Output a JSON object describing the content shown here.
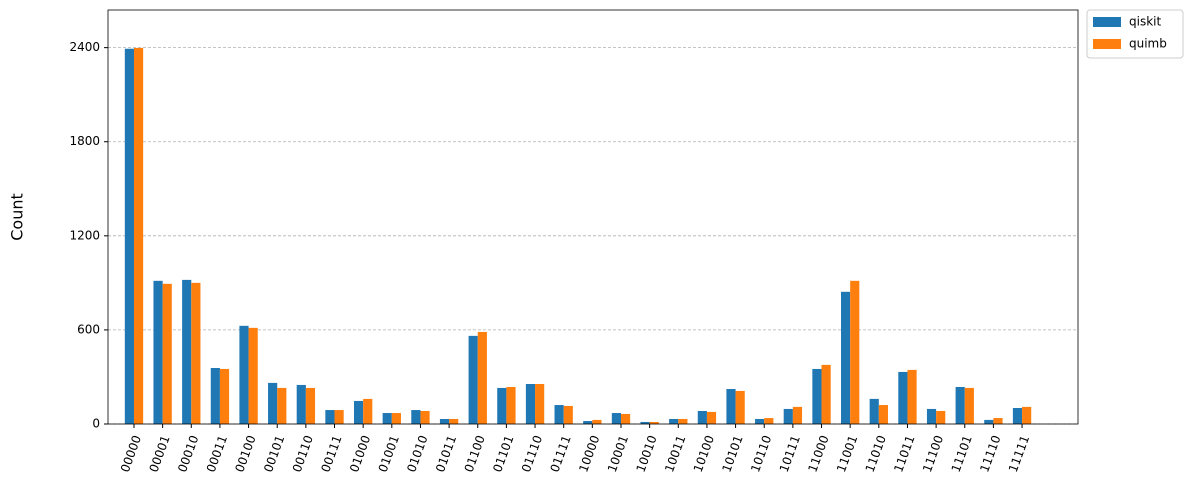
{
  "chart_data": {
    "type": "bar",
    "y_label": "Count",
    "categories": [
      "00000",
      "00001",
      "00010",
      "00011",
      "00100",
      "00101",
      "00110",
      "00111",
      "01000",
      "01001",
      "01010",
      "01011",
      "01100",
      "01101",
      "01110",
      "01111",
      "10000",
      "10001",
      "10010",
      "10011",
      "10100",
      "10101",
      "10110",
      "10111",
      "11000",
      "11001",
      "11010",
      "11011",
      "11100",
      "11101",
      "11110",
      "11111"
    ],
    "series": [
      {
        "name": "qiskit",
        "color": "#1f77b4",
        "values": [
          2393,
          913,
          919,
          357,
          626,
          262,
          249,
          89,
          147,
          70,
          89,
          32,
          562,
          230,
          255,
          121,
          19,
          70,
          13,
          32,
          83,
          223,
          32,
          96,
          351,
          843,
          160,
          332,
          96,
          236,
          26,
          102
        ]
      },
      {
        "name": "quimb",
        "color": "#ff7f0e",
        "values": [
          2398,
          894,
          900,
          351,
          613,
          230,
          230,
          89,
          160,
          70,
          83,
          32,
          587,
          236,
          255,
          115,
          26,
          64,
          13,
          32,
          77,
          211,
          38,
          109,
          377,
          913,
          121,
          345,
          83,
          230,
          38,
          109
        ]
      }
    ],
    "ylim": [
      0,
      2640
    ],
    "yticks": [
      0,
      600,
      1200,
      1800,
      2400
    ],
    "grid": true,
    "legend": "outside-upper-right"
  }
}
